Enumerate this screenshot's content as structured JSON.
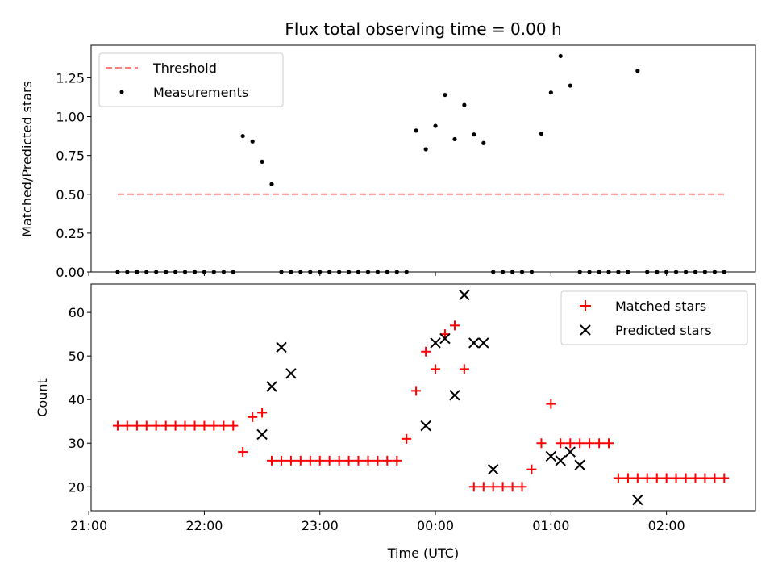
{
  "chart_data": [
    {
      "type": "scatter",
      "title": "Flux total observing time = 0.00 h",
      "ylabel": "Matched/Predicted stars",
      "xlabel": "",
      "x_unit": "hours since 00:00 UTC",
      "xlim": [
        -2.98,
        2.77
      ],
      "ylim": [
        0.0,
        1.46
      ],
      "yticks": [
        0.0,
        0.25,
        0.5,
        0.75,
        1.0,
        1.25
      ],
      "ytick_labels": [
        "0.00",
        "0.25",
        "0.50",
        "0.75",
        "1.00",
        "1.25"
      ],
      "xticks": [
        -3,
        -2,
        -1,
        0,
        1,
        2
      ],
      "legend_loc": "upper left",
      "threshold": {
        "name": "Threshold",
        "value": 0.5,
        "x_range": [
          -2.75,
          2.5
        ],
        "color": "#ff0000",
        "alpha": 0.5
      },
      "series": [
        {
          "name": "Measurements",
          "color": "#000000",
          "x": [
            -2.75,
            -2.667,
            -2.583,
            -2.5,
            -2.417,
            -2.333,
            -2.25,
            -2.167,
            -2.083,
            -2.0,
            -1.917,
            -1.833,
            -1.75,
            -1.667,
            -1.583,
            -1.5,
            -1.417,
            -1.333,
            -1.25,
            -1.167,
            -1.083,
            -1.0,
            -0.917,
            -0.833,
            -0.75,
            -0.667,
            -0.583,
            -0.5,
            -0.417,
            -0.333,
            -0.25,
            -0.167,
            -0.083,
            0.0,
            0.083,
            0.167,
            0.25,
            0.333,
            0.417,
            0.5,
            0.583,
            0.667,
            0.75,
            0.833,
            0.917,
            1.0,
            1.083,
            1.167,
            1.25,
            1.333,
            1.417,
            1.5,
            1.583,
            1.667,
            1.75,
            1.833,
            1.917,
            2.0,
            2.083,
            2.167,
            2.25,
            2.333,
            2.417,
            2.5
          ],
          "y": [
            0,
            0,
            0,
            0,
            0,
            0,
            0,
            0,
            0,
            0,
            0,
            0,
            0,
            0.875,
            0.84,
            0.71,
            0.565,
            0,
            0,
            0,
            0,
            0,
            0,
            0,
            0,
            0,
            0,
            0,
            0,
            0,
            0,
            0.91,
            0.79,
            0.94,
            1.14,
            0.855,
            1.075,
            0.885,
            0.83,
            0,
            0,
            0,
            0,
            0,
            0.89,
            1.155,
            1.39,
            1.2,
            0,
            0,
            0,
            0,
            0,
            0,
            1.295,
            0,
            0,
            0,
            0,
            0,
            0,
            0,
            0,
            0
          ]
        }
      ]
    },
    {
      "type": "scatter",
      "title": "",
      "ylabel": "Count",
      "xlabel": "Time (UTC)",
      "x_unit": "hours since 00:00 UTC",
      "xlim": [
        -2.98,
        2.77
      ],
      "ylim": [
        14.5,
        66.5
      ],
      "yticks": [
        20,
        30,
        40,
        50,
        60
      ],
      "ytick_labels": [
        "20",
        "30",
        "40",
        "50",
        "60"
      ],
      "xticks": [
        -3,
        -2,
        -1,
        0,
        1,
        2
      ],
      "xtick_labels": [
        "21:00",
        "22:00",
        "23:00",
        "00:00",
        "01:00",
        "02:00"
      ],
      "legend_loc": "upper right",
      "series": [
        {
          "name": "Matched stars",
          "marker": "+",
          "color": "#ff0000",
          "x": [
            -2.75,
            -2.667,
            -2.583,
            -2.5,
            -2.417,
            -2.333,
            -2.25,
            -2.167,
            -2.083,
            -2.0,
            -1.917,
            -1.833,
            -1.75,
            -1.667,
            -1.583,
            -1.5,
            -1.417,
            -1.333,
            -1.25,
            -1.167,
            -1.083,
            -1.0,
            -0.917,
            -0.833,
            -0.75,
            -0.667,
            -0.583,
            -0.5,
            -0.417,
            -0.333,
            -0.25,
            -0.167,
            -0.083,
            0.0,
            0.083,
            0.167,
            0.25,
            0.333,
            0.417,
            0.5,
            0.583,
            0.667,
            0.75,
            0.833,
            0.917,
            1.0,
            1.083,
            1.167,
            1.25,
            1.333,
            1.417,
            1.5,
            1.583,
            1.667,
            1.75,
            1.833,
            1.917,
            2.0,
            2.083,
            2.167,
            2.25,
            2.333,
            2.417,
            2.5
          ],
          "y": [
            34,
            34,
            34,
            34,
            34,
            34,
            34,
            34,
            34,
            34,
            34,
            34,
            34,
            28,
            36,
            37,
            26,
            26,
            26,
            26,
            26,
            26,
            26,
            26,
            26,
            26,
            26,
            26,
            26,
            26,
            31,
            42,
            51,
            47,
            55,
            57,
            47,
            20,
            20,
            20,
            20,
            20,
            20,
            24,
            30,
            39,
            30,
            30,
            30,
            30,
            30,
            30,
            22,
            22,
            22,
            22,
            22,
            22,
            22,
            22,
            22,
            22,
            22,
            22
          ]
        },
        {
          "name": "Predicted stars",
          "marker": "x",
          "color": "#000000",
          "x": [
            -1.5,
            -1.417,
            -1.333,
            -1.25,
            -0.083,
            0.0,
            0.083,
            0.167,
            0.25,
            0.333,
            0.417,
            0.5,
            1.0,
            1.083,
            1.167,
            1.25,
            1.75
          ],
          "y": [
            32,
            43,
            52,
            46,
            34,
            53,
            54,
            41,
            64,
            53,
            53,
            24,
            27,
            26,
            28,
            25,
            17
          ]
        }
      ]
    }
  ]
}
